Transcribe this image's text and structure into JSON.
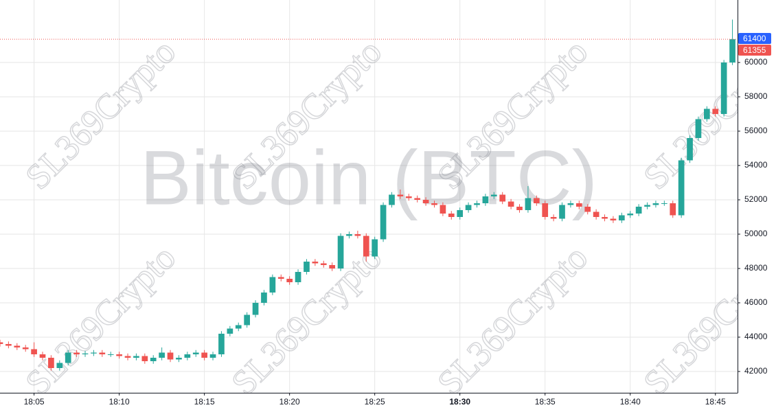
{
  "chart_data": {
    "type": "candlestick",
    "title": "Bitcoin (BTC)",
    "watermark": "SL369Crypto",
    "x": [
      1083,
      1083.5,
      1084,
      1084.5,
      1085,
      1085.5,
      1086,
      1086.5,
      1087,
      1087.5,
      1088,
      1088.5,
      1089,
      1089.5,
      1090,
      1090.5,
      1091,
      1091.5,
      1092,
      1092.5,
      1093,
      1093.5,
      1094,
      1094.5,
      1095,
      1095.5,
      1096,
      1096.5,
      1097,
      1097.5,
      1098,
      1098.5,
      1099,
      1099.5,
      1100,
      1100.5,
      1101,
      1101.5,
      1102,
      1102.5,
      1103,
      1103.5,
      1104,
      1104.5,
      1105,
      1105.5,
      1106,
      1106.5,
      1107,
      1107.5,
      1108,
      1108.5,
      1109,
      1109.5,
      1110,
      1110.5,
      1111,
      1111.5,
      1112,
      1112.5,
      1113,
      1113.5,
      1114,
      1114.5,
      1115,
      1115.5,
      1116,
      1116.5,
      1117,
      1117.5,
      1118,
      1118.5,
      1119,
      1119.5,
      1120,
      1120.5,
      1121,
      1121.5,
      1122,
      1122.5,
      1123,
      1123.5,
      1124,
      1124.5,
      1125,
      1125.5,
      1126
    ],
    "open": [
      43700,
      43600,
      43500,
      43400,
      43300,
      43000,
      42800,
      42200,
      42500,
      43100,
      43000,
      43050,
      43100,
      43000,
      43000,
      42900,
      42800,
      42900,
      42600,
      42800,
      43100,
      42700,
      42800,
      43000,
      43100,
      42800,
      43000,
      44200,
      44500,
      44700,
      45300,
      46000,
      46600,
      47500,
      47400,
      47200,
      47800,
      48400,
      48300,
      48200,
      48000,
      49900,
      50000,
      49900,
      48700,
      49700,
      51700,
      52300,
      52200,
      52100,
      52000,
      51800,
      51700,
      51200,
      51000,
      51400,
      51700,
      51800,
      52200,
      52300,
      51900,
      51600,
      51400,
      52100,
      51800,
      51000,
      50900,
      51700,
      51800,
      51600,
      51300,
      51000,
      50900,
      50800,
      51100,
      51200,
      51600,
      51700,
      51800,
      51800,
      51100,
      54300,
      55600,
      56700,
      57300,
      57000,
      60000
    ],
    "high": [
      43850,
      43750,
      43650,
      43550,
      43700,
      43150,
      42950,
      42650,
      43250,
      43250,
      43200,
      43250,
      43250,
      43150,
      43150,
      43050,
      43050,
      43050,
      42950,
      43400,
      43250,
      42950,
      43150,
      43250,
      43250,
      43150,
      44350,
      44650,
      44850,
      45450,
      46150,
      46750,
      47650,
      47650,
      47550,
      47950,
      48550,
      48550,
      48450,
      48350,
      50050,
      50150,
      50200,
      50050,
      49850,
      51850,
      52450,
      52600,
      52350,
      52250,
      52150,
      51950,
      51850,
      51350,
      51550,
      51850,
      51950,
      52350,
      52450,
      52450,
      52050,
      51750,
      52800,
      52250,
      51950,
      51150,
      51850,
      51950,
      51950,
      51750,
      51450,
      51150,
      51050,
      51250,
      51350,
      51750,
      51850,
      51950,
      51950,
      51950,
      54450,
      55750,
      56850,
      57450,
      57450,
      60150,
      62500
    ],
    "low": [
      43450,
      43350,
      43250,
      43150,
      42850,
      42650,
      42050,
      42050,
      42350,
      42850,
      42850,
      42900,
      42850,
      42850,
      42750,
      42650,
      42650,
      42450,
      42450,
      42650,
      42550,
      42550,
      42650,
      42850,
      42650,
      42650,
      42850,
      44050,
      44350,
      44550,
      45150,
      45850,
      46450,
      47250,
      47050,
      47050,
      47650,
      48150,
      48050,
      47850,
      47850,
      49750,
      49750,
      48400,
      48550,
      49550,
      51550,
      52050,
      51950,
      51850,
      51650,
      51550,
      51050,
      50850,
      50850,
      51250,
      51550,
      51650,
      52050,
      51750,
      51450,
      51250,
      51250,
      51650,
      50850,
      50750,
      50750,
      51550,
      51450,
      51150,
      50850,
      50750,
      50650,
      50650,
      50950,
      51050,
      51450,
      51550,
      51650,
      50950,
      50950,
      54150,
      55450,
      56550,
      56850,
      56850,
      59850
    ],
    "close": [
      43600,
      43500,
      43400,
      43300,
      43000,
      42800,
      42200,
      42500,
      43100,
      43000,
      43050,
      43100,
      43000,
      43000,
      42900,
      42800,
      42900,
      42600,
      42800,
      43100,
      42700,
      42800,
      43000,
      43100,
      42800,
      43000,
      44200,
      44500,
      44700,
      45300,
      46000,
      46600,
      47500,
      47400,
      47200,
      47800,
      48400,
      48300,
      48200,
      48000,
      49900,
      50000,
      49900,
      48700,
      49700,
      51700,
      52300,
      52200,
      52100,
      52000,
      51800,
      51700,
      51200,
      51000,
      51400,
      51700,
      51800,
      52200,
      52300,
      51900,
      51600,
      51400,
      52100,
      51800,
      51000,
      50900,
      51700,
      51800,
      51600,
      51300,
      51000,
      50900,
      50800,
      51100,
      51200,
      51600,
      51700,
      51800,
      51800,
      51100,
      54300,
      55600,
      56700,
      57300,
      57000,
      60000,
      61355
    ],
    "up_color": "#26a69a",
    "down_color": "#ef5350",
    "xlim": [
      1083,
      1126.3
    ],
    "ylim": [
      40760,
      63640
    ],
    "xticks": [
      {
        "value": 1085,
        "label": "18:05"
      },
      {
        "value": 1090,
        "label": "18:10"
      },
      {
        "value": 1095,
        "label": "18:15"
      },
      {
        "value": 1100,
        "label": "18:20"
      },
      {
        "value": 1105,
        "label": "18:25"
      },
      {
        "value": 1110,
        "label": "18:30",
        "bold": true
      },
      {
        "value": 1115,
        "label": "18:35"
      },
      {
        "value": 1120,
        "label": "18:40"
      },
      {
        "value": 1125,
        "label": "18:45"
      }
    ],
    "yticks": [
      42000,
      44000,
      46000,
      48000,
      50000,
      52000,
      54000,
      56000,
      58000,
      60000
    ],
    "grid": true,
    "price_markers": [
      {
        "value": 61400,
        "color": "#2962ff"
      },
      {
        "value": 61355,
        "color": "#ef5350",
        "line": true
      }
    ]
  }
}
